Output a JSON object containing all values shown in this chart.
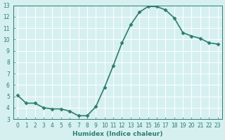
{
  "xlabel": "Humidex (Indice chaleur)",
  "x": [
    0,
    1,
    2,
    3,
    4,
    5,
    6,
    7,
    8,
    9,
    10,
    11,
    12,
    13,
    14,
    15,
    16,
    17,
    18,
    19,
    20,
    21,
    22,
    23
  ],
  "y": [
    5.1,
    4.4,
    4.4,
    4.0,
    3.9,
    3.9,
    3.7,
    3.3,
    3.3,
    4.1,
    5.8,
    7.7,
    9.7,
    11.3,
    12.4,
    12.9,
    12.9,
    12.6,
    11.9,
    10.6,
    10.3,
    10.1,
    9.7,
    9.6
  ],
  "line_color": "#2e7d6e",
  "marker": "D",
  "marker_size": 2.5,
  "linewidth": 1.2,
  "background_color": "#d6f0f0",
  "grid_color": "#ffffff",
  "xlim": [
    -0.5,
    23.5
  ],
  "ylim": [
    3,
    13
  ],
  "yticks": [
    3,
    4,
    5,
    6,
    7,
    8,
    9,
    10,
    11,
    12,
    13
  ],
  "xticks": [
    0,
    1,
    2,
    3,
    4,
    5,
    6,
    7,
    8,
    9,
    10,
    11,
    12,
    13,
    14,
    15,
    16,
    17,
    18,
    19,
    20,
    21,
    22,
    23
  ],
  "tick_color": "#2e7d6e",
  "tick_fontsize": 5.5,
  "label_fontsize": 6.5
}
